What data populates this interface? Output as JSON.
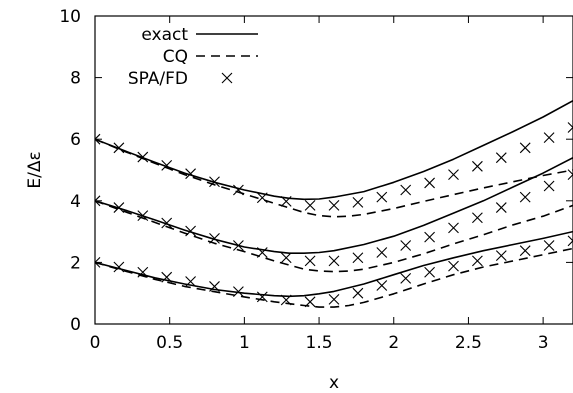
{
  "chart_data": {
    "type": "line",
    "xlabel": "x",
    "ylabel": "E/Δε",
    "xlim": [
      0,
      3.2
    ],
    "ylim": [
      0,
      10
    ],
    "x_ticks": [
      0,
      0.5,
      1,
      1.5,
      2,
      2.5,
      3
    ],
    "x_tick_labels": [
      "0",
      "0.5",
      "1",
      "1.5",
      "2",
      "2.5",
      "3"
    ],
    "y_ticks": [
      0,
      2,
      4,
      6,
      8,
      10
    ],
    "y_tick_labels": [
      "0",
      "2",
      "4",
      "6",
      "8",
      "10"
    ],
    "grid": false,
    "legend_position": "top-left",
    "legend": [
      {
        "label": "exact",
        "style": "solid"
      },
      {
        "label": "CQ",
        "style": "dashed"
      },
      {
        "label": "SPA/FD",
        "style": "cross"
      }
    ],
    "series": [
      {
        "group": "exact",
        "style": "solid",
        "x": [
          0,
          0.2,
          0.4,
          0.6,
          0.8,
          1.0,
          1.2,
          1.3,
          1.4,
          1.5,
          1.6,
          1.8,
          2.0,
          2.2,
          2.4,
          2.6,
          2.8,
          3.0,
          3.2
        ],
        "y": [
          6.0,
          5.62,
          5.25,
          4.9,
          4.6,
          4.35,
          4.15,
          4.08,
          4.05,
          4.06,
          4.12,
          4.3,
          4.6,
          4.95,
          5.35,
          5.8,
          6.25,
          6.72,
          7.25
        ]
      },
      {
        "group": "exact",
        "style": "solid",
        "x": [
          0,
          0.2,
          0.4,
          0.6,
          0.8,
          1.0,
          1.2,
          1.3,
          1.4,
          1.5,
          1.6,
          1.8,
          2.0,
          2.2,
          2.4,
          2.6,
          2.8,
          3.0,
          3.2
        ],
        "y": [
          4.0,
          3.7,
          3.38,
          3.05,
          2.75,
          2.5,
          2.35,
          2.3,
          2.3,
          2.32,
          2.38,
          2.58,
          2.85,
          3.2,
          3.6,
          4.0,
          4.45,
          4.9,
          5.4
        ]
      },
      {
        "group": "exact",
        "style": "solid",
        "x": [
          0,
          0.2,
          0.4,
          0.6,
          0.8,
          1.0,
          1.2,
          1.3,
          1.4,
          1.5,
          1.6,
          1.8,
          2.0,
          2.2,
          2.4,
          2.6,
          2.8,
          3.0,
          3.2
        ],
        "y": [
          2.0,
          1.75,
          1.5,
          1.3,
          1.12,
          1.0,
          0.92,
          0.9,
          0.92,
          0.98,
          1.06,
          1.3,
          1.6,
          1.9,
          2.15,
          2.38,
          2.58,
          2.78,
          3.0
        ]
      },
      {
        "group": "CQ",
        "style": "dashed",
        "x": [
          0,
          0.2,
          0.4,
          0.6,
          0.8,
          1.0,
          1.2,
          1.4,
          1.5,
          1.6,
          1.7,
          1.8,
          2.0,
          2.2,
          2.4,
          2.6,
          2.8,
          3.0,
          3.2
        ],
        "y": [
          6.0,
          5.6,
          5.22,
          4.85,
          4.52,
          4.22,
          3.92,
          3.62,
          3.52,
          3.48,
          3.5,
          3.56,
          3.75,
          3.98,
          4.2,
          4.42,
          4.62,
          4.82,
          5.0
        ]
      },
      {
        "group": "CQ",
        "style": "dashed",
        "x": [
          0,
          0.2,
          0.4,
          0.6,
          0.8,
          1.0,
          1.2,
          1.4,
          1.5,
          1.6,
          1.7,
          1.8,
          2.0,
          2.2,
          2.4,
          2.6,
          2.8,
          3.0,
          3.2
        ],
        "y": [
          4.0,
          3.65,
          3.3,
          2.95,
          2.62,
          2.35,
          2.05,
          1.78,
          1.72,
          1.7,
          1.72,
          1.78,
          2.0,
          2.28,
          2.6,
          2.9,
          3.22,
          3.5,
          3.85
        ]
      },
      {
        "group": "CQ",
        "style": "dashed",
        "x": [
          0,
          0.2,
          0.4,
          0.6,
          0.8,
          1.0,
          1.2,
          1.4,
          1.5,
          1.6,
          1.7,
          1.8,
          2.0,
          2.2,
          2.4,
          2.6,
          2.8,
          3.0,
          3.2
        ],
        "y": [
          2.0,
          1.72,
          1.45,
          1.22,
          1.05,
          0.88,
          0.72,
          0.6,
          0.55,
          0.55,
          0.6,
          0.7,
          0.98,
          1.3,
          1.6,
          1.85,
          2.05,
          2.25,
          2.45
        ]
      },
      {
        "group": "SPA/FD",
        "style": "cross",
        "x": [
          0,
          0.16,
          0.32,
          0.48,
          0.64,
          0.8,
          0.96,
          1.12,
          1.28,
          1.44,
          1.6,
          1.76,
          1.92,
          2.08,
          2.24,
          2.4,
          2.56,
          2.72,
          2.88,
          3.04,
          3.2
        ],
        "y": [
          6.0,
          5.72,
          5.42,
          5.15,
          4.88,
          4.62,
          4.35,
          4.1,
          3.98,
          3.85,
          3.85,
          3.95,
          4.12,
          4.35,
          4.58,
          4.85,
          5.12,
          5.4,
          5.72,
          6.05,
          6.38
        ]
      },
      {
        "group": "SPA/FD",
        "style": "cross",
        "x": [
          0,
          0.16,
          0.32,
          0.48,
          0.64,
          0.8,
          0.96,
          1.12,
          1.28,
          1.44,
          1.6,
          1.76,
          1.92,
          2.08,
          2.24,
          2.4,
          2.56,
          2.72,
          2.88,
          3.04,
          3.2
        ],
        "y": [
          4.0,
          3.78,
          3.52,
          3.28,
          3.02,
          2.78,
          2.55,
          2.32,
          2.15,
          2.05,
          2.05,
          2.15,
          2.32,
          2.55,
          2.82,
          3.12,
          3.45,
          3.78,
          4.12,
          4.48,
          4.85
        ]
      },
      {
        "group": "SPA/FD",
        "style": "cross",
        "x": [
          0,
          0.16,
          0.32,
          0.48,
          0.64,
          0.8,
          0.96,
          1.12,
          1.28,
          1.44,
          1.6,
          1.76,
          1.92,
          2.08,
          2.24,
          2.4,
          2.56,
          2.72,
          2.88,
          3.04,
          3.2
        ],
        "y": [
          2.0,
          1.85,
          1.68,
          1.52,
          1.38,
          1.22,
          1.05,
          0.88,
          0.78,
          0.72,
          0.8,
          1.0,
          1.25,
          1.48,
          1.68,
          1.88,
          2.05,
          2.22,
          2.38,
          2.55,
          2.7
        ]
      }
    ]
  }
}
